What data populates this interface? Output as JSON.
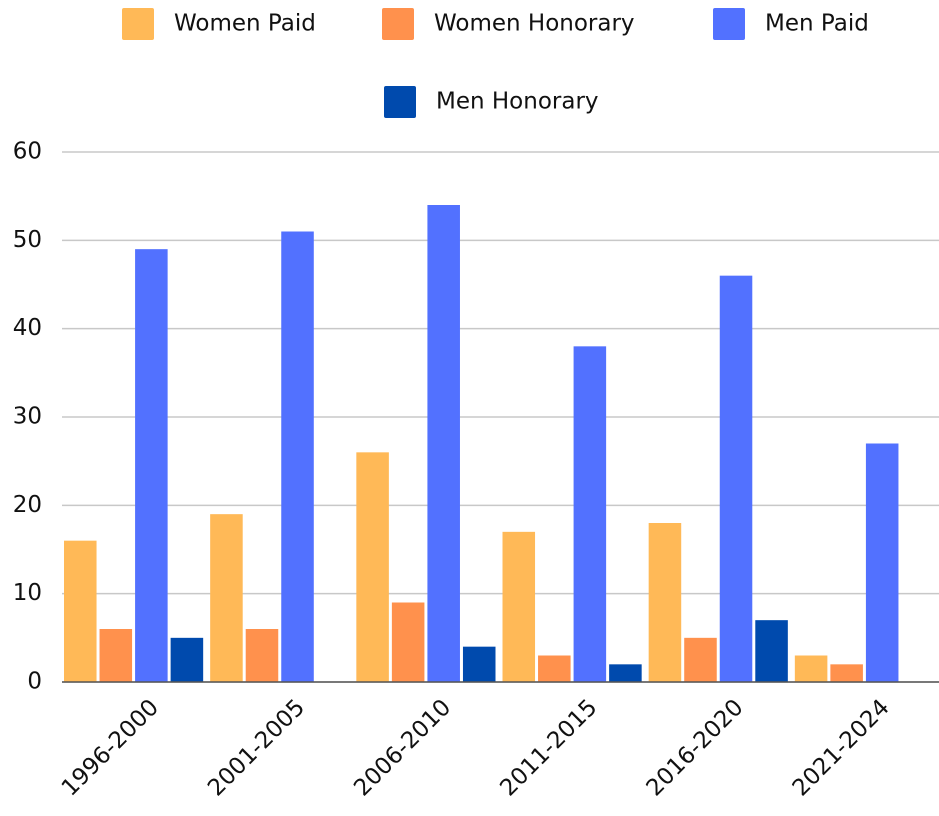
{
  "chart_data": {
    "type": "bar",
    "categories": [
      "1996-2000",
      "2001-2005",
      "2006-2010",
      "2011-2015",
      "2016-2020",
      "2021-2024"
    ],
    "series": [
      {
        "name": "Women Paid",
        "color": "#ffb957",
        "values": [
          16,
          19,
          26,
          17,
          18,
          3
        ]
      },
      {
        "name": "Women Honorary",
        "color": "#ff914d",
        "values": [
          6,
          6,
          9,
          3,
          5,
          2
        ]
      },
      {
        "name": "Men Paid",
        "color": "#5271ff",
        "values": [
          49,
          51,
          54,
          38,
          46,
          27
        ]
      },
      {
        "name": "Men Honorary",
        "color": "#004aad",
        "values": [
          5,
          0,
          4,
          2,
          7,
          0
        ]
      }
    ],
    "ylim": [
      0,
      60
    ],
    "yticks": [
      0,
      10,
      20,
      30,
      40,
      50,
      60
    ],
    "grid": true,
    "legend": "top"
  }
}
